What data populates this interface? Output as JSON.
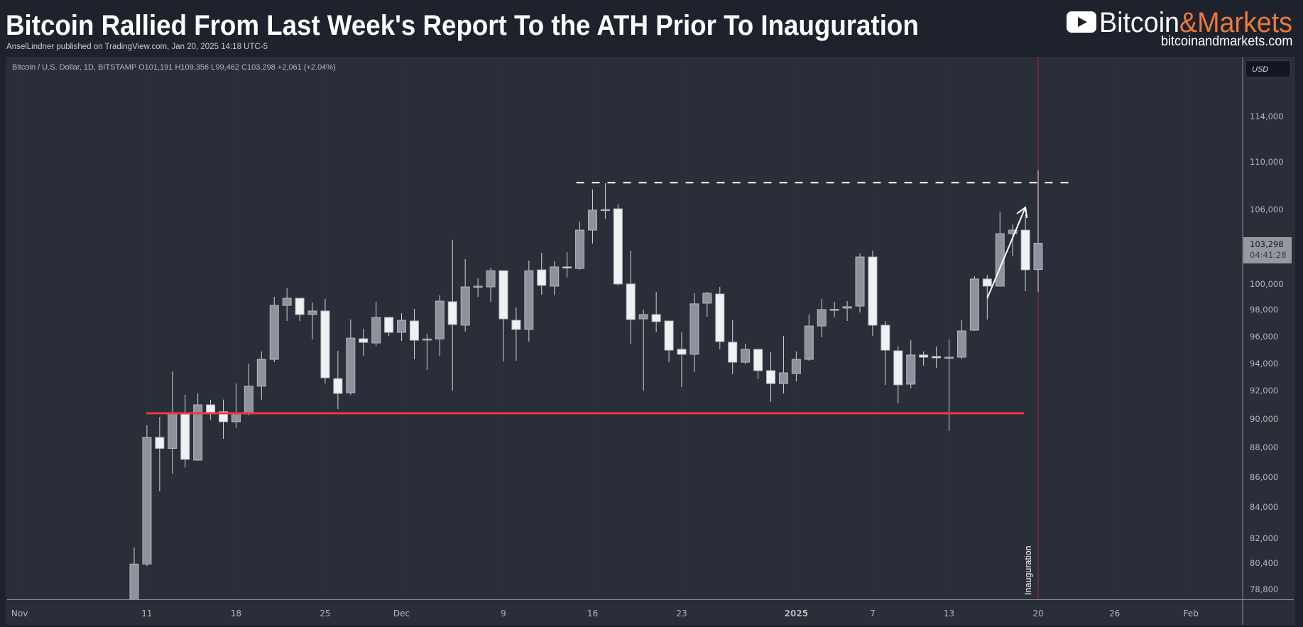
{
  "header": {
    "title": "Bitcoin Rallied From Last Week's Report To the ATH Prior To Inauguration",
    "subtitle": "AnselLindner published on TradingView.com, Jan 20, 2025 14:18 UTC-5"
  },
  "logo": {
    "icon": "play-icon",
    "name_part1": "Bitcoin",
    "name_part2": "&Markets",
    "url": "bitcoinandmarkets.com",
    "accent": "#ea7a3c"
  },
  "legend": "Bitcoin / U.S. Dollar, 1D, BITSTAMP  O101,191  H109,356  L99,462  C103,298  +2,061 (+2.04%)",
  "price_axis": {
    "currency": "USD",
    "last_price": "103,298",
    "countdown": "04:41:28",
    "ticks": [
      {
        "v": 114000,
        "label": "114,000"
      },
      {
        "v": 110000,
        "label": "110,000"
      },
      {
        "v": 106000,
        "label": "106,000"
      },
      {
        "v": 100000,
        "label": "100,000"
      },
      {
        "v": 98000,
        "label": "98,000"
      },
      {
        "v": 96000,
        "label": "96,000"
      },
      {
        "v": 94000,
        "label": "94,000"
      },
      {
        "v": 92000,
        "label": "92,000"
      },
      {
        "v": 90000,
        "label": "90,000"
      },
      {
        "v": 88000,
        "label": "88,000"
      },
      {
        "v": 86000,
        "label": "86,000"
      },
      {
        "v": 84000,
        "label": "84,000"
      },
      {
        "v": 82000,
        "label": "82,000"
      },
      {
        "v": 80400,
        "label": "80,400"
      },
      {
        "v": 78800,
        "label": "78,800"
      }
    ]
  },
  "chart_data": {
    "type": "candlestick",
    "title": "",
    "symbol": "Bitcoin / U.S. Dollar, 1D, BITSTAMP",
    "y_scale": "log",
    "ylim": [
      78000,
      117000
    ],
    "grid": false,
    "colors": {
      "up": "#8f929c",
      "down": "#f0f2f2",
      "wick": "#d1d4dc",
      "support": "#f23645",
      "event_line": "#7a2e3b"
    },
    "x_ticks": [
      {
        "date": "Nov 1",
        "label": "Nov",
        "bold": false
      },
      {
        "date": "Nov 11",
        "label": "11",
        "bold": false
      },
      {
        "date": "Nov 18",
        "label": "18",
        "bold": false
      },
      {
        "date": "Nov 25",
        "label": "25",
        "bold": false
      },
      {
        "date": "Dec 1",
        "label": "Dec",
        "bold": false
      },
      {
        "date": "Dec 9",
        "label": "9",
        "bold": false
      },
      {
        "date": "Dec 16",
        "label": "16",
        "bold": false
      },
      {
        "date": "Dec 23",
        "label": "23",
        "bold": false
      },
      {
        "date": "Jan 1",
        "label": "2025",
        "bold": true
      },
      {
        "date": "Jan 7",
        "label": "7",
        "bold": false
      },
      {
        "date": "Jan 13",
        "label": "13",
        "bold": false
      },
      {
        "date": "Jan 20",
        "label": "20",
        "bold": false
      },
      {
        "date": "Jan 26",
        "label": "26",
        "bold": false
      },
      {
        "date": "Feb 1",
        "label": "Feb",
        "bold": false
      }
    ],
    "columns": [
      "date",
      "open",
      "high",
      "low",
      "close"
    ],
    "candles": [
      [
        "Nov 10",
        76700,
        81450,
        76500,
        80400
      ],
      [
        "Nov 11",
        80400,
        89600,
        80270,
        88760
      ],
      [
        "Nov 12",
        88760,
        90200,
        85100,
        88000
      ],
      [
        "Nov 13",
        88000,
        93460,
        86270,
        90400
      ],
      [
        "Nov 14",
        90400,
        91760,
        86700,
        87250
      ],
      [
        "Nov 15",
        87200,
        91860,
        87150,
        91050
      ],
      [
        "Nov 16",
        91050,
        91400,
        90000,
        90500
      ],
      [
        "Nov 17",
        90560,
        91420,
        88660,
        89850
      ],
      [
        "Nov 18",
        89850,
        92580,
        89400,
        90400
      ],
      [
        "Nov 19",
        90400,
        94030,
        90300,
        92380
      ],
      [
        "Nov 20",
        92380,
        94920,
        91420,
        94340
      ],
      [
        "Nov 21",
        94340,
        99060,
        94130,
        98400
      ],
      [
        "Nov 22",
        98400,
        99720,
        97210,
        98950
      ],
      [
        "Nov 23",
        98950,
        98950,
        97210,
        97700
      ],
      [
        "Nov 24",
        97700,
        98620,
        95820,
        97970
      ],
      [
        "Nov 25",
        97970,
        98900,
        92570,
        92990
      ],
      [
        "Nov 26",
        92930,
        94970,
        90750,
        91860
      ],
      [
        "Nov 27",
        91910,
        97320,
        91760,
        95920
      ],
      [
        "Nov 28",
        95870,
        96620,
        94600,
        95600
      ],
      [
        "Nov 29",
        95550,
        98680,
        95340,
        97480
      ],
      [
        "Nov 30",
        97480,
        97480,
        96080,
        96350
      ],
      [
        "Dec 1",
        96350,
        97800,
        95710,
        97260
      ],
      [
        "Dec 2",
        97210,
        98130,
        94340,
        95760
      ],
      [
        "Dec 3",
        95800,
        96250,
        93560,
        95850
      ],
      [
        "Dec 4",
        95850,
        99170,
        94600,
        98730
      ],
      [
        "Dec 5",
        98680,
        103560,
        92060,
        96940
      ],
      [
        "Dec 6",
        96890,
        102020,
        96410,
        99830
      ],
      [
        "Dec 7",
        99830,
        100500,
        99060,
        99890
      ],
      [
        "Dec 8",
        99830,
        101340,
        98680,
        101100
      ],
      [
        "Dec 9",
        101100,
        101100,
        94190,
        97370
      ],
      [
        "Dec 10",
        97260,
        98240,
        94240,
        96570
      ],
      [
        "Dec 11",
        96570,
        101900,
        95660,
        101100
      ],
      [
        "Dec 12",
        101170,
        102520,
        99230,
        99950
      ],
      [
        "Dec 13",
        99890,
        101850,
        99180,
        101400
      ],
      [
        "Dec 14",
        101400,
        102580,
        100560,
        101380
      ],
      [
        "Dec 15",
        101280,
        105060,
        101170,
        104360
      ],
      [
        "Dec 16",
        104360,
        107720,
        103270,
        106000
      ],
      [
        "Dec 17",
        106000,
        108260,
        105290,
        106050
      ],
      [
        "Dec 18",
        106110,
        106470,
        99940,
        100060
      ],
      [
        "Dec 19",
        100060,
        102700,
        95500,
        97320
      ],
      [
        "Dec 20",
        97370,
        98080,
        92060,
        97700
      ],
      [
        "Dec 21",
        97700,
        99450,
        96350,
        97160
      ],
      [
        "Dec 22",
        97210,
        97210,
        94130,
        95020
      ],
      [
        "Dec 23",
        95080,
        96350,
        92330,
        94710
      ],
      [
        "Dec 24",
        94710,
        99340,
        93410,
        98520
      ],
      [
        "Dec 25",
        98570,
        99450,
        97540,
        99340
      ],
      [
        "Dec 26",
        99280,
        99830,
        95080,
        95660
      ],
      [
        "Dec 27",
        95610,
        97260,
        93250,
        94130
      ],
      [
        "Dec 28",
        94130,
        95500,
        93980,
        95080
      ],
      [
        "Dec 29",
        95080,
        95080,
        92890,
        93510
      ],
      [
        "Dec 30",
        93510,
        94870,
        91260,
        92570
      ],
      [
        "Dec 31",
        92570,
        96080,
        91850,
        93350
      ],
      [
        "Jan 1",
        93300,
        94920,
        92730,
        94340
      ],
      [
        "Jan 2",
        94340,
        97700,
        94240,
        96830
      ],
      [
        "Jan 3",
        96830,
        98900,
        95980,
        98080
      ],
      [
        "Jan 4",
        98080,
        98680,
        97480,
        98100
      ],
      [
        "Jan 5",
        98190,
        98730,
        97210,
        98300
      ],
      [
        "Jan 6",
        98350,
        102470,
        97860,
        102190
      ],
      [
        "Jan 7",
        102190,
        102700,
        96080,
        96890
      ],
      [
        "Jan 8",
        96890,
        97210,
        92480,
        95020
      ],
      [
        "Jan 9",
        94970,
        95290,
        91160,
        92480
      ],
      [
        "Jan 10",
        92530,
        95760,
        92220,
        94660
      ],
      [
        "Jan 11",
        94660,
        94920,
        93880,
        94500
      ],
      [
        "Jan 12",
        94550,
        95290,
        93720,
        94450
      ],
      [
        "Jan 13",
        94450,
        95820,
        89200,
        94500
      ],
      [
        "Jan 14",
        94500,
        97260,
        94340,
        96460
      ],
      [
        "Jan 15",
        96510,
        100670,
        96460,
        100450
      ],
      [
        "Jan 16",
        100450,
        100780,
        97320,
        99890
      ],
      [
        "Jan 17",
        99890,
        105880,
        99890,
        104070
      ],
      [
        "Jan 18",
        104070,
        104820,
        102240,
        104360
      ],
      [
        "Jan 19",
        104360,
        105640,
        99500,
        101170
      ],
      [
        "Jan 20",
        101191,
        109356,
        99462,
        103298
      ]
    ],
    "annotations": {
      "support_line": {
        "price": 90450,
        "from": "Nov 11",
        "to": "Jan 19"
      },
      "ath_dashed_line": {
        "price": 108300,
        "from": "Dec 15",
        "to": "Jan 23"
      },
      "arrow": {
        "from_date": "Jan 16",
        "from_price": 98950,
        "to_date": "Jan 19",
        "to_price": 106230
      },
      "event_line": {
        "date": "Jan 20",
        "label": "Inauguration"
      }
    }
  }
}
